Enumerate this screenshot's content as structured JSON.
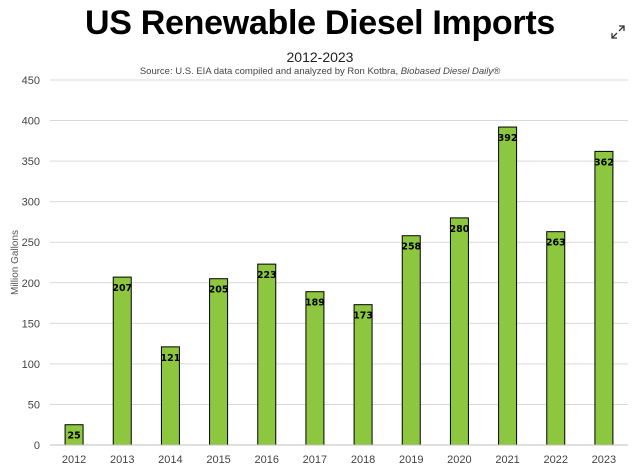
{
  "chart_data": {
    "type": "bar",
    "title": "US Renewable Diesel Imports",
    "subtitle": "2012-2023",
    "source_prefix": "Source: U.S. EIA data compiled and analyzed by Ron Kotbra, ",
    "source_italic": "Biobased Diesel Daily®",
    "xlabel": "",
    "ylabel": "Million Gallons",
    "categories": [
      "2012",
      "2013",
      "2014",
      "2015",
      "2016",
      "2017",
      "2018",
      "2019",
      "2020",
      "2021",
      "2022",
      "2023"
    ],
    "values": [
      25,
      207,
      121,
      205,
      223,
      189,
      173,
      258,
      280,
      392,
      263,
      362
    ],
    "ylim": [
      0,
      450
    ],
    "yticks": [
      0,
      50,
      100,
      150,
      200,
      250,
      300,
      350,
      400,
      450
    ],
    "grid": true,
    "legend": "none",
    "bar_color": "#8dc63f",
    "bar_edge_color": "#000000",
    "grid_color": "#d9d9d9"
  },
  "icons": {
    "expand": "expand-arrows-icon"
  }
}
